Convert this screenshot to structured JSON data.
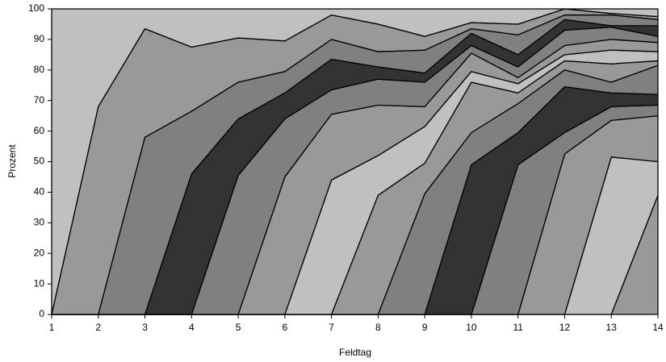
{
  "chart_data": {
    "type": "stacked-area",
    "x_label": "Feldtag",
    "y_label": "Prozent",
    "x": [
      1,
      2,
      3,
      4,
      5,
      6,
      7,
      8,
      9,
      10,
      11,
      12,
      13,
      14
    ],
    "xlim": [
      1,
      14
    ],
    "xticks": [
      1,
      2,
      3,
      4,
      5,
      6,
      7,
      8,
      9,
      10,
      11,
      12,
      13,
      14
    ],
    "ylim": [
      0,
      100
    ],
    "yticks": [
      0,
      10,
      20,
      30,
      40,
      50,
      60,
      70,
      80,
      90,
      100
    ],
    "series": [
      {
        "color": "#999999",
        "values": [
          0,
          0,
          0,
          0,
          0,
          0,
          0,
          0,
          0,
          0,
          0,
          0,
          0,
          39
        ]
      },
      {
        "color": "#c0c0c0",
        "values": [
          0,
          0,
          0,
          0,
          0,
          0,
          0,
          0,
          0,
          0,
          0,
          0,
          51.5,
          11
        ]
      },
      {
        "color": "#999999",
        "values": [
          0,
          0,
          0,
          0,
          0,
          0,
          0,
          0,
          0,
          0,
          0,
          52.5,
          12,
          15
        ]
      },
      {
        "color": "#808080",
        "values": [
          0,
          0,
          0,
          0,
          0,
          0,
          0,
          0,
          0,
          0,
          49,
          7,
          4.5,
          3.5
        ]
      },
      {
        "color": "#333333",
        "values": [
          0,
          0,
          0,
          0,
          0,
          0,
          0,
          0,
          0,
          49,
          10.5,
          15,
          4.5,
          3.5
        ]
      },
      {
        "color": "#808080",
        "values": [
          0,
          0,
          0,
          0,
          0,
          0,
          0,
          0,
          39.5,
          10.5,
          9.5,
          5.5,
          3.5,
          9.5
        ]
      },
      {
        "color": "#999999",
        "values": [
          0,
          0,
          0,
          0,
          0,
          0,
          0,
          39,
          10,
          16.5,
          3.5,
          3,
          6,
          1.5
        ]
      },
      {
        "color": "#c0c0c0",
        "values": [
          0,
          0,
          0,
          0,
          0,
          0,
          44,
          13,
          12,
          3.5,
          3,
          2,
          4.5,
          3
        ]
      },
      {
        "color": "#999999",
        "values": [
          0,
          0,
          0,
          0,
          0,
          45,
          21.5,
          16.5,
          6.5,
          6,
          2,
          3,
          3.5,
          3
        ]
      },
      {
        "color": "#808080",
        "values": [
          0,
          0,
          0,
          0,
          45.5,
          19,
          8,
          8.5,
          8,
          2.5,
          3.5,
          5,
          4,
          2
        ]
      },
      {
        "color": "#333333",
        "values": [
          0,
          0,
          0,
          46,
          18.5,
          8.5,
          10,
          4,
          3,
          4,
          4,
          3.5,
          0.5,
          3.5
        ]
      },
      {
        "color": "#808080",
        "values": [
          0,
          0,
          58,
          20.5,
          12,
          7,
          6.5,
          5,
          7.5,
          1.5,
          6.5,
          1.5,
          3.5,
          2
        ]
      },
      {
        "color": "#999999",
        "values": [
          0,
          68,
          35.5,
          21,
          14.5,
          10,
          8,
          9,
          4.5,
          2,
          3.5,
          2,
          0.5,
          1
        ]
      },
      {
        "color": "#c0c0c0",
        "values": [
          100,
          32,
          6.5,
          12.5,
          9.5,
          10.5,
          2,
          5,
          9,
          4.5,
          5,
          0,
          1.5,
          2.5
        ]
      }
    ]
  }
}
